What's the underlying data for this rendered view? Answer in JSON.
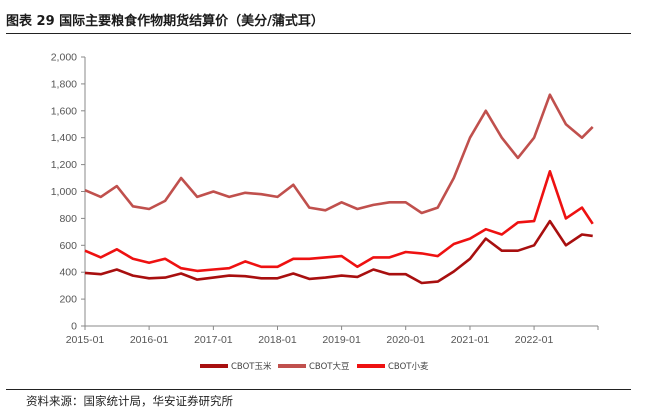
{
  "header": {
    "title": "图表 29 国际主要粮食作物期货结算价（美分/蒲式耳）"
  },
  "footer": {
    "source": "资料来源：国家统计局，华安证券研究所"
  },
  "chart_data": {
    "type": "line",
    "x": [
      "2015-01",
      "2015-04",
      "2015-07",
      "2015-10",
      "2016-01",
      "2016-04",
      "2016-07",
      "2016-10",
      "2017-01",
      "2017-04",
      "2017-07",
      "2017-10",
      "2018-01",
      "2018-04",
      "2018-07",
      "2018-10",
      "2019-01",
      "2019-04",
      "2019-07",
      "2019-10",
      "2020-01",
      "2020-04",
      "2020-07",
      "2020-10",
      "2021-01",
      "2021-04",
      "2021-07",
      "2021-10",
      "2022-01",
      "2022-04",
      "2022-07",
      "2022-10",
      "2022-12"
    ],
    "x_ticks": [
      "2015-01",
      "2016-01",
      "2017-01",
      "2018-01",
      "2019-01",
      "2020-01",
      "2021-01",
      "2022-01"
    ],
    "ylim": [
      0,
      2000
    ],
    "y_ticks": [
      "0",
      "200",
      "400",
      "600",
      "800",
      "1,000",
      "1,200",
      "1,400",
      "1,600",
      "1,800",
      "2,000"
    ],
    "grid": false,
    "legend_position": "bottom",
    "series": [
      {
        "name": "CBOT玉米",
        "color": "#a80f0f",
        "values": [
          395,
          385,
          420,
          375,
          355,
          360,
          390,
          345,
          360,
          375,
          370,
          355,
          355,
          390,
          350,
          360,
          375,
          365,
          420,
          385,
          385,
          320,
          330,
          405,
          500,
          650,
          560,
          560,
          600,
          780,
          600,
          680,
          670
        ]
      },
      {
        "name": "CBOT大豆",
        "color": "#c0504d",
        "values": [
          1010,
          960,
          1040,
          890,
          870,
          930,
          1100,
          960,
          1000,
          960,
          990,
          980,
          960,
          1050,
          880,
          860,
          920,
          870,
          900,
          920,
          920,
          840,
          880,
          1100,
          1400,
          1600,
          1400,
          1250,
          1400,
          1720,
          1500,
          1400,
          1480
        ]
      },
      {
        "name": "CBOT小麦",
        "color": "#ee1111",
        "values": [
          560,
          510,
          570,
          500,
          470,
          500,
          430,
          410,
          420,
          430,
          480,
          440,
          440,
          500,
          500,
          510,
          520,
          440,
          510,
          510,
          550,
          540,
          520,
          610,
          650,
          720,
          680,
          770,
          780,
          1150,
          800,
          880,
          760
        ]
      }
    ]
  }
}
